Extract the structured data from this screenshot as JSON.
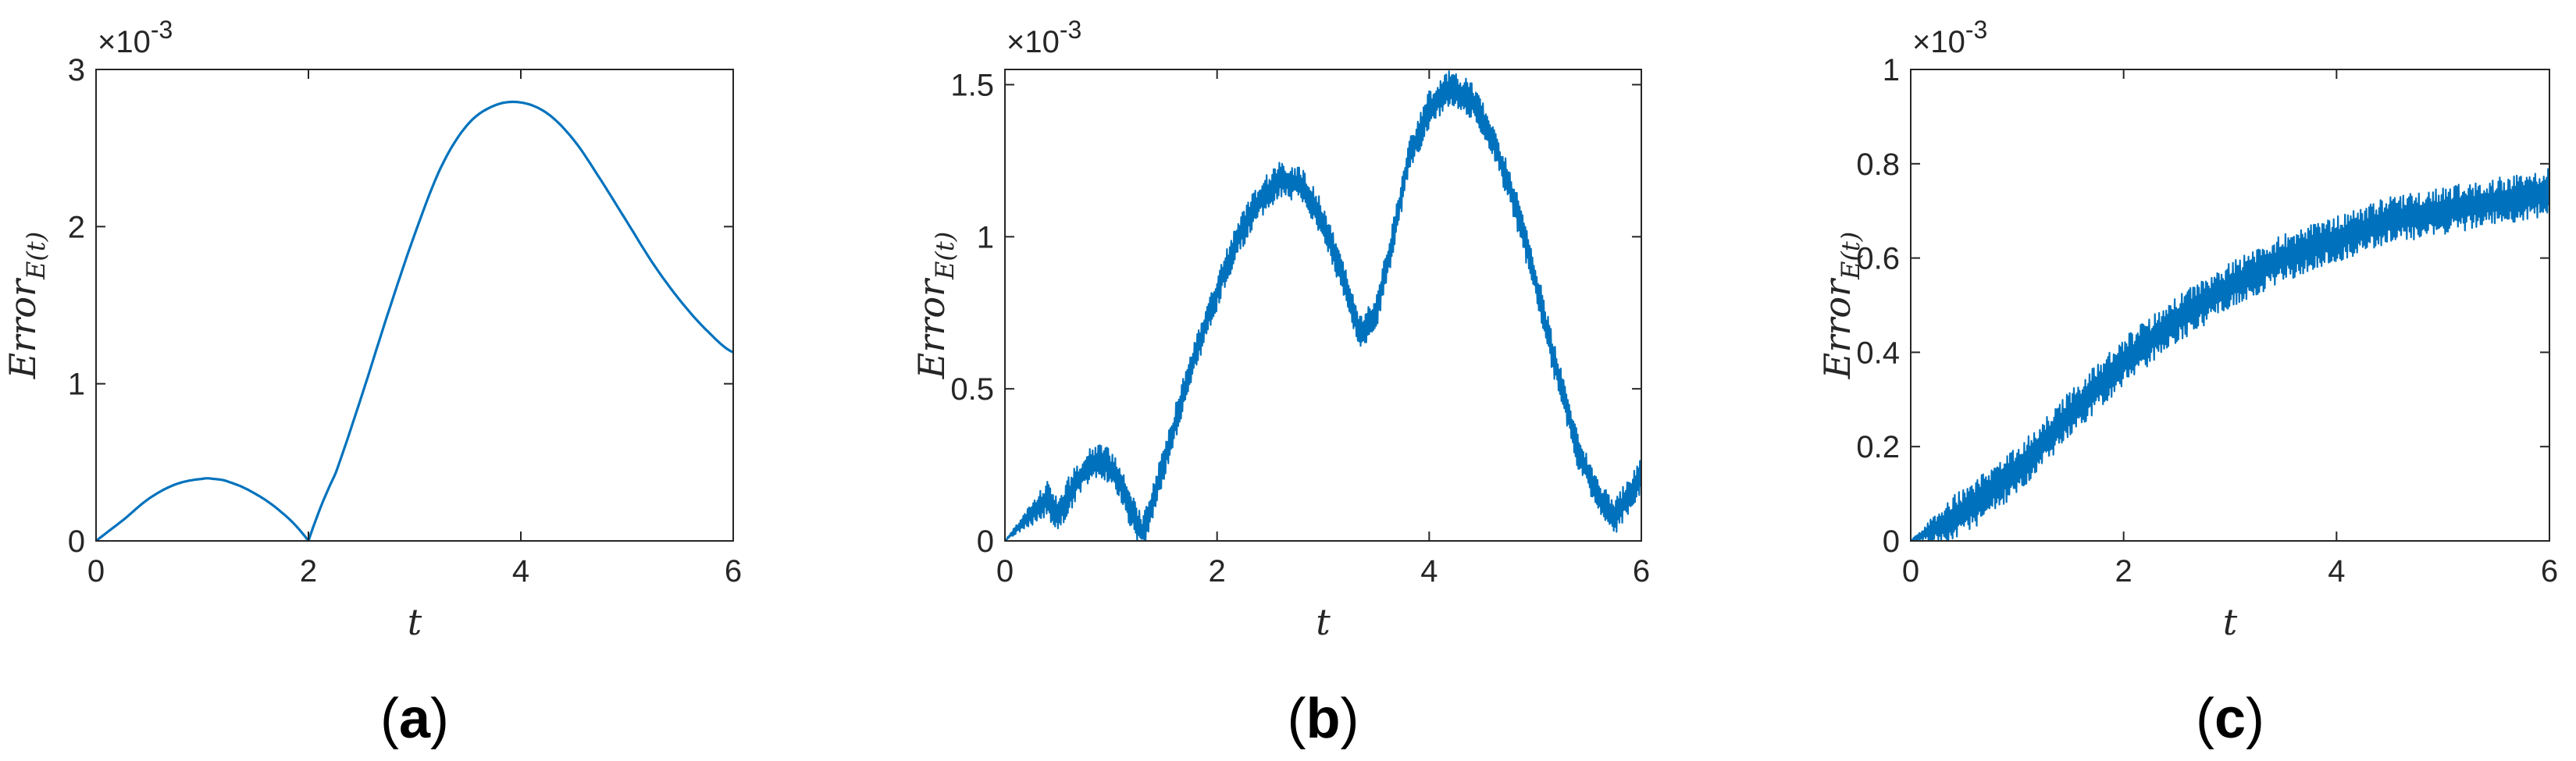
{
  "figure": {
    "line_color": "#0072BD",
    "axis_color": "#262626"
  },
  "chart_data": [
    {
      "type": "line",
      "panel_label": "a",
      "xlabel": "t",
      "ylabel_base": "Error",
      "ylabel_sub": "E(t)",
      "x_ticks": [
        "0",
        "2",
        "4",
        "6"
      ],
      "y_ticks": [
        "0",
        "1",
        "2",
        "3"
      ],
      "y_scale_label": "×10",
      "y_scale_exp": "-3",
      "xlim": [
        0,
        6
      ],
      "ylim": [
        0,
        3
      ],
      "grid": false,
      "series": [
        {
          "x": [
            0,
            0.25,
            0.5,
            0.75,
            1.0,
            1.1,
            1.25,
            1.5,
            1.75,
            2.0,
            2.25,
            2.5,
            2.75,
            3.0,
            3.25,
            3.5,
            3.75,
            4.0,
            4.25,
            4.5,
            4.75,
            5.0,
            5.25,
            5.5,
            5.75,
            6.0
          ],
          "y": [
            0,
            0.13,
            0.27,
            0.36,
            0.395,
            0.395,
            0.375,
            0.3,
            0.18,
            0.0,
            0.42,
            0.92,
            1.45,
            1.95,
            2.38,
            2.65,
            2.77,
            2.79,
            2.72,
            2.55,
            2.3,
            2.03,
            1.76,
            1.53,
            1.34,
            1.2
          ]
        }
      ]
    },
    {
      "type": "line",
      "panel_label": "b",
      "xlabel": "t",
      "ylabel_base": "Error",
      "ylabel_sub": "E(t)",
      "x_ticks": [
        "0",
        "2",
        "4",
        "6"
      ],
      "y_ticks": [
        "0",
        "0.5",
        "1",
        "1.5"
      ],
      "y_scale_label": "×10",
      "y_scale_exp": "-3",
      "xlim": [
        0,
        6
      ],
      "ylim": [
        0,
        1.55
      ],
      "grid": false,
      "oscillation_amplitude": 0.06,
      "series": [
        {
          "x": [
            0,
            0.2,
            0.4,
            0.5,
            0.6,
            0.75,
            0.9,
            1.05,
            1.2,
            1.3,
            1.4,
            1.6,
            1.8,
            2.0,
            2.2,
            2.4,
            2.6,
            2.8,
            3.0,
            3.2,
            3.35,
            3.5,
            3.65,
            3.8,
            4.0,
            4.2,
            4.4,
            4.6,
            4.8,
            5.0,
            5.2,
            5.4,
            5.6,
            5.75,
            5.9,
            6.0
          ],
          "y": [
            0,
            0.07,
            0.14,
            0.08,
            0.15,
            0.23,
            0.27,
            0.22,
            0.09,
            0.02,
            0.14,
            0.38,
            0.62,
            0.82,
            1.0,
            1.12,
            1.19,
            1.17,
            1.05,
            0.85,
            0.68,
            0.75,
            0.98,
            1.25,
            1.42,
            1.49,
            1.45,
            1.32,
            1.12,
            0.86,
            0.56,
            0.3,
            0.14,
            0.08,
            0.16,
            0.22
          ]
        }
      ]
    },
    {
      "type": "line",
      "panel_label": "c",
      "xlabel": "t",
      "ylabel_base": "Error",
      "ylabel_sub": "E(t)",
      "x_ticks": [
        "0",
        "2",
        "4",
        "6"
      ],
      "y_ticks": [
        "0",
        "0.2",
        "0.4",
        "0.6",
        "0.8",
        "1"
      ],
      "y_scale_label": "×10",
      "y_scale_exp": "-3",
      "xlim": [
        0,
        6
      ],
      "ylim": [
        0,
        1
      ],
      "grid": false,
      "oscillation_amplitude": 0.05,
      "series": [
        {
          "x": [
            0,
            0.5,
            1.0,
            1.5,
            2.0,
            2.5,
            3.0,
            3.5,
            4.0,
            4.5,
            5.0,
            5.5,
            6.0
          ],
          "y": [
            0,
            0.06,
            0.15,
            0.27,
            0.38,
            0.47,
            0.54,
            0.6,
            0.64,
            0.68,
            0.7,
            0.72,
            0.74
          ]
        }
      ]
    }
  ]
}
